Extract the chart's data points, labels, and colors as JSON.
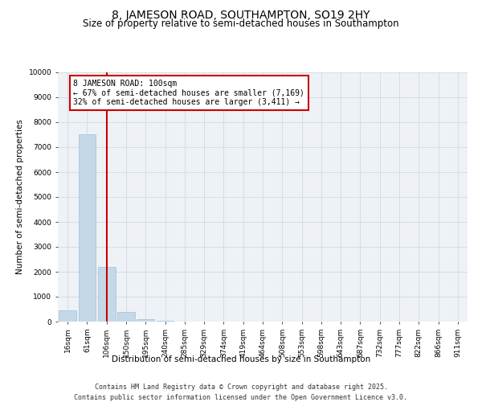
{
  "title": "8, JAMESON ROAD, SOUTHAMPTON, SO19 2HY",
  "subtitle": "Size of property relative to semi-detached houses in Southampton",
  "xlabel": "Distribution of semi-detached houses by size in Southampton",
  "ylabel": "Number of semi-detached properties",
  "categories": [
    "16sqm",
    "61sqm",
    "106sqm",
    "150sqm",
    "195sqm",
    "240sqm",
    "285sqm",
    "329sqm",
    "374sqm",
    "419sqm",
    "464sqm",
    "508sqm",
    "553sqm",
    "598sqm",
    "643sqm",
    "687sqm",
    "732sqm",
    "777sqm",
    "822sqm",
    "866sqm",
    "911sqm"
  ],
  "values": [
    450,
    7500,
    2200,
    390,
    100,
    40,
    0,
    0,
    0,
    0,
    0,
    0,
    0,
    0,
    0,
    0,
    0,
    0,
    0,
    0,
    0
  ],
  "bar_color": "#c5d8e8",
  "bar_edge_color": "#a0bfd0",
  "vline_x": 2,
  "vline_color": "#cc0000",
  "property_label": "8 JAMESON ROAD: 100sqm",
  "smaller_label": "← 67% of semi-detached houses are smaller (7,169)",
  "larger_label": "32% of semi-detached houses are larger (3,411) →",
  "box_color": "#cc0000",
  "ylim": [
    0,
    10000
  ],
  "yticks": [
    0,
    1000,
    2000,
    3000,
    4000,
    5000,
    6000,
    7000,
    8000,
    9000,
    10000
  ],
  "footer1": "Contains HM Land Registry data © Crown copyright and database right 2025.",
  "footer2": "Contains public sector information licensed under the Open Government Licence v3.0.",
  "bg_color": "#eef2f7",
  "grid_color": "#ccd4de",
  "title_fontsize": 10,
  "subtitle_fontsize": 8.5,
  "axis_label_fontsize": 7.5,
  "tick_fontsize": 6.5,
  "annotation_fontsize": 7,
  "footer_fontsize": 6
}
